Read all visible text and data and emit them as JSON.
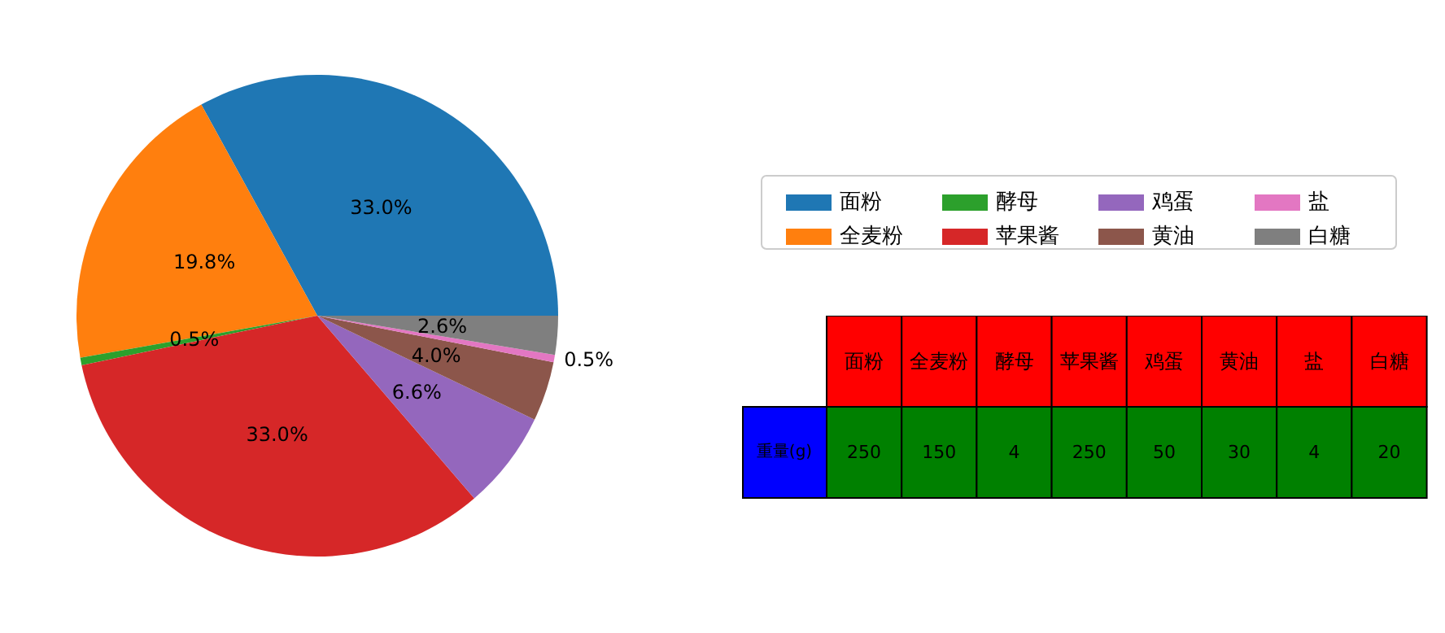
{
  "chart_data": [
    {
      "type": "pie",
      "categories": [
        "面粉",
        "全麦粉",
        "酵母",
        "苹果酱",
        "鸡蛋",
        "黄油",
        "盐",
        "白糖"
      ],
      "values": [
        33.0,
        19.8,
        0.5,
        33.0,
        6.6,
        4.0,
        0.5,
        2.6
      ],
      "colors": [
        "#1f77b4",
        "#ff7f0e",
        "#2ca02c",
        "#d62728",
        "#9467bd",
        "#8c564b",
        "#e377c2",
        "#7f7f7f"
      ],
      "value_labels": [
        "33.0%",
        "19.8%",
        "0.5%",
        "33.0%",
        "6.6%",
        "4.0%",
        "0.5%",
        "2.6%"
      ],
      "legend": "right"
    },
    {
      "type": "other",
      "categories": [
        "面粉",
        "全麦粉",
        "酵母",
        "苹果酱",
        "鸡蛋",
        "黄油",
        "盐",
        "白糖"
      ],
      "values": [
        250,
        150,
        4,
        250,
        50,
        30,
        4,
        20
      ],
      "ylabel": "重量(g)",
      "data_labels": true
    }
  ]
}
